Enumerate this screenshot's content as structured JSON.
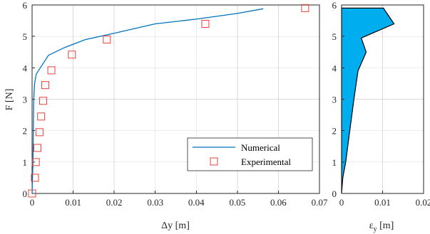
{
  "chart_data": [
    {
      "type": "line",
      "xlabel": "Δy [m]",
      "ylabel": "F [N]",
      "xlim": [
        0,
        0.07
      ],
      "ylim": [
        0,
        6
      ],
      "xticks": [
        "0",
        "0.01",
        "0.02",
        "0.03",
        "0.04",
        "0.05",
        "0.06",
        "0.07"
      ],
      "yticks": [
        "0",
        "1",
        "2",
        "3",
        "4",
        "5",
        "6"
      ],
      "grid": true,
      "legend_position": "bottom-right",
      "series": [
        {
          "name": "Numerical",
          "style": "line",
          "color": "#0072BD",
          "x": [
            0,
            0.0002,
            0.0003,
            0.0004,
            0.0006,
            0.001,
            0.002,
            0.004,
            0.008,
            0.013,
            0.02,
            0.03,
            0.04,
            0.05,
            0.0563
          ],
          "y": [
            0,
            1.0,
            2.0,
            3.0,
            3.5,
            3.8,
            4.0,
            4.4,
            4.65,
            4.9,
            5.1,
            5.4,
            5.55,
            5.73,
            5.88
          ]
        },
        {
          "name": "Experimental",
          "style": "marker-square",
          "color": "#E8403A",
          "x": [
            0,
            0.0007,
            0.0009,
            0.0013,
            0.0018,
            0.0022,
            0.0027,
            0.0032,
            0.0047,
            0.0097,
            0.0182,
            0.0422,
            0.0665
          ],
          "y": [
            0,
            0.5,
            1.0,
            1.45,
            1.95,
            2.45,
            2.95,
            3.45,
            3.92,
            4.42,
            4.9,
            5.4,
            5.9
          ]
        }
      ]
    },
    {
      "type": "area",
      "xlabel": "ε_y [m]",
      "xlim": [
        0,
        0.02
      ],
      "ylim": [
        0,
        6
      ],
      "xticks": [
        "0",
        "0.01",
        "0.02"
      ],
      "yticks": [
        "0",
        "1",
        "2",
        "3",
        "4",
        "5",
        "6"
      ],
      "grid": true,
      "fill_color": "#00AEEF",
      "series": [
        {
          "x": [
            0,
            0.0003,
            0.001,
            0.002,
            0.003,
            0.004,
            0.006,
            0.0048,
            0.0128,
            0.0102,
            0,
            0
          ],
          "y": [
            0,
            0.5,
            1.0,
            2.0,
            3.0,
            3.9,
            4.5,
            4.95,
            5.4,
            5.9,
            5.9,
            0
          ]
        }
      ]
    }
  ]
}
